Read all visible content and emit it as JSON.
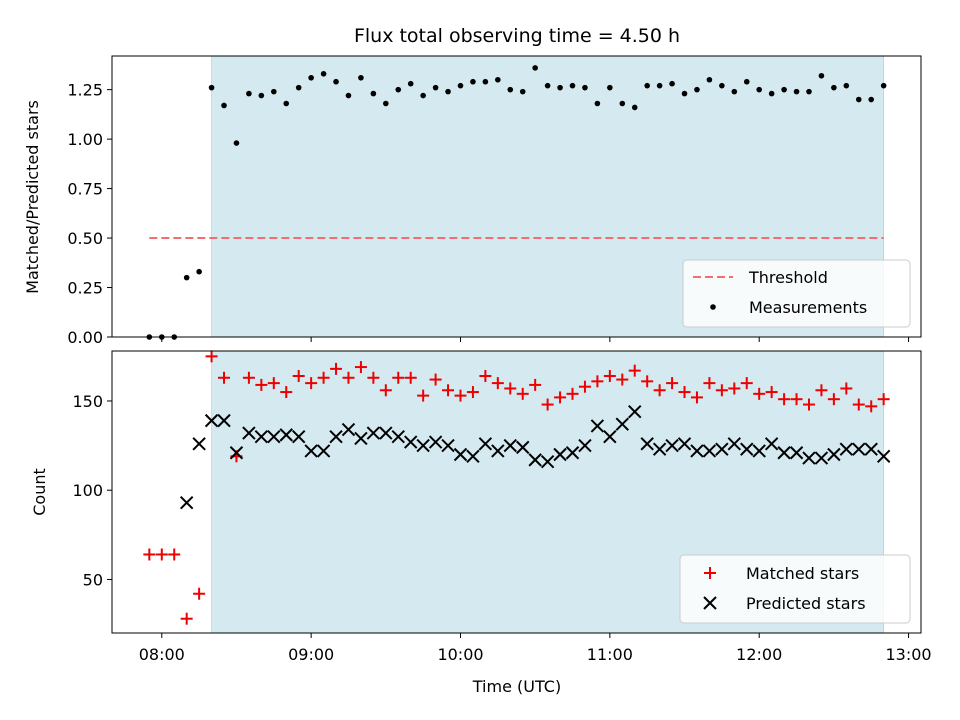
{
  "chart_data": [
    {
      "type": "scatter",
      "title": "Flux total observing time = 4.50 h",
      "xlabel": "",
      "ylabel": "Matched/Predicted stars",
      "xlim": [
        "07:40",
        "13:05"
      ],
      "ylim": [
        0.0,
        1.42
      ],
      "yticks": [
        "0.00",
        "0.25",
        "0.50",
        "0.75",
        "1.00",
        "1.25"
      ],
      "observing_window": [
        "08:20",
        "12:50"
      ],
      "observing_window_color": "#d4eaf0",
      "legend_placement": "lower right",
      "threshold": {
        "name": "Threshold",
        "value": 0.5,
        "x_range": [
          "07:55",
          "12:50"
        ],
        "color": "#f07070",
        "style": "dashed"
      },
      "series": [
        {
          "name": "Measurements",
          "color": "#000000",
          "marker": "dot",
          "x": [
            "07:55",
            "08:00",
            "08:05",
            "08:10",
            "08:15",
            "08:20",
            "08:25",
            "08:30",
            "08:35",
            "08:40",
            "08:45",
            "08:50",
            "08:55",
            "09:00",
            "09:05",
            "09:10",
            "09:15",
            "09:20",
            "09:25",
            "09:30",
            "09:35",
            "09:40",
            "09:45",
            "09:50",
            "09:55",
            "10:00",
            "10:05",
            "10:10",
            "10:15",
            "10:20",
            "10:25",
            "10:30",
            "10:35",
            "10:40",
            "10:45",
            "10:50",
            "10:55",
            "11:00",
            "11:05",
            "11:10",
            "11:15",
            "11:20",
            "11:25",
            "11:30",
            "11:35",
            "11:40",
            "11:45",
            "11:50",
            "11:55",
            "12:00",
            "12:05",
            "12:10",
            "12:15",
            "12:20",
            "12:25",
            "12:30",
            "12:35",
            "12:40",
            "12:45",
            "12:50"
          ],
          "y": [
            0.0,
            0.0,
            0.0,
            0.3,
            0.33,
            1.26,
            1.17,
            0.98,
            1.23,
            1.22,
            1.24,
            1.18,
            1.26,
            1.31,
            1.33,
            1.29,
            1.22,
            1.31,
            1.23,
            1.18,
            1.25,
            1.28,
            1.22,
            1.26,
            1.24,
            1.27,
            1.29,
            1.29,
            1.3,
            1.25,
            1.24,
            1.36,
            1.27,
            1.26,
            1.27,
            1.26,
            1.18,
            1.26,
            1.18,
            1.16,
            1.27,
            1.27,
            1.28,
            1.23,
            1.25,
            1.3,
            1.27,
            1.24,
            1.29,
            1.25,
            1.23,
            1.25,
            1.24,
            1.24,
            1.32,
            1.26,
            1.27,
            1.2,
            1.2,
            1.27
          ]
        }
      ]
    },
    {
      "type": "scatter",
      "title": "",
      "xlabel": "Time (UTC)",
      "ylabel": "Count",
      "xlim": [
        "07:40",
        "13:05"
      ],
      "ylim": [
        20,
        178
      ],
      "yticks": [
        "50",
        "100",
        "150"
      ],
      "xticks": [
        "08:00",
        "09:00",
        "10:00",
        "11:00",
        "12:00",
        "13:00"
      ],
      "observing_window": [
        "08:20",
        "12:50"
      ],
      "observing_window_color": "#d4eaf0",
      "legend_placement": "lower right",
      "series": [
        {
          "name": "Matched stars",
          "color": "#ee0000",
          "marker": "plus",
          "x": [
            "07:55",
            "08:00",
            "08:05",
            "08:10",
            "08:15",
            "08:20",
            "08:25",
            "08:30",
            "08:35",
            "08:40",
            "08:45",
            "08:50",
            "08:55",
            "09:00",
            "09:05",
            "09:10",
            "09:15",
            "09:20",
            "09:25",
            "09:30",
            "09:35",
            "09:40",
            "09:45",
            "09:50",
            "09:55",
            "10:00",
            "10:05",
            "10:10",
            "10:15",
            "10:20",
            "10:25",
            "10:30",
            "10:35",
            "10:40",
            "10:45",
            "10:50",
            "10:55",
            "11:00",
            "11:05",
            "11:10",
            "11:15",
            "11:20",
            "11:25",
            "11:30",
            "11:35",
            "11:40",
            "11:45",
            "11:50",
            "11:55",
            "12:00",
            "12:05",
            "12:10",
            "12:15",
            "12:20",
            "12:25",
            "12:30",
            "12:35",
            "12:40",
            "12:45",
            "12:50"
          ],
          "y": [
            64,
            64,
            64,
            28,
            42,
            175,
            163,
            119,
            163,
            159,
            160,
            155,
            164,
            160,
            163,
            168,
            163,
            169,
            163,
            156,
            163,
            163,
            153,
            162,
            156,
            153,
            155,
            164,
            160,
            157,
            154,
            159,
            148,
            152,
            154,
            158,
            161,
            164,
            162,
            167,
            161,
            156,
            160,
            155,
            152,
            160,
            156,
            157,
            160,
            154,
            155,
            151,
            151,
            148,
            156,
            151,
            157,
            148,
            147,
            151
          ]
        },
        {
          "name": "Predicted stars",
          "color": "#000000",
          "marker": "x",
          "x": [
            "08:10",
            "08:15",
            "08:20",
            "08:25",
            "08:30",
            "08:35",
            "08:40",
            "08:45",
            "08:50",
            "08:55",
            "09:00",
            "09:05",
            "09:10",
            "09:15",
            "09:20",
            "09:25",
            "09:30",
            "09:35",
            "09:40",
            "09:45",
            "09:50",
            "09:55",
            "10:00",
            "10:05",
            "10:10",
            "10:15",
            "10:20",
            "10:25",
            "10:30",
            "10:35",
            "10:40",
            "10:45",
            "10:50",
            "10:55",
            "11:00",
            "11:05",
            "11:10",
            "11:15",
            "11:20",
            "11:25",
            "11:30",
            "11:35",
            "11:40",
            "11:45",
            "11:50",
            "11:55",
            "12:00",
            "12:05",
            "12:10",
            "12:15",
            "12:20",
            "12:25",
            "12:30",
            "12:35",
            "12:40",
            "12:45",
            "12:50"
          ],
          "y": [
            93,
            126,
            139,
            139,
            121,
            132,
            130,
            130,
            131,
            130,
            122,
            122,
            130,
            134,
            129,
            132,
            132,
            130,
            127,
            125,
            127,
            125,
            120,
            119,
            126,
            122,
            125,
            124,
            117,
            116,
            120,
            121,
            125,
            136,
            130,
            137,
            144,
            126,
            123,
            125,
            126,
            122,
            122,
            123,
            126,
            123,
            122,
            126,
            121,
            121,
            118,
            118,
            120,
            123,
            123,
            123,
            119
          ]
        }
      ]
    }
  ]
}
